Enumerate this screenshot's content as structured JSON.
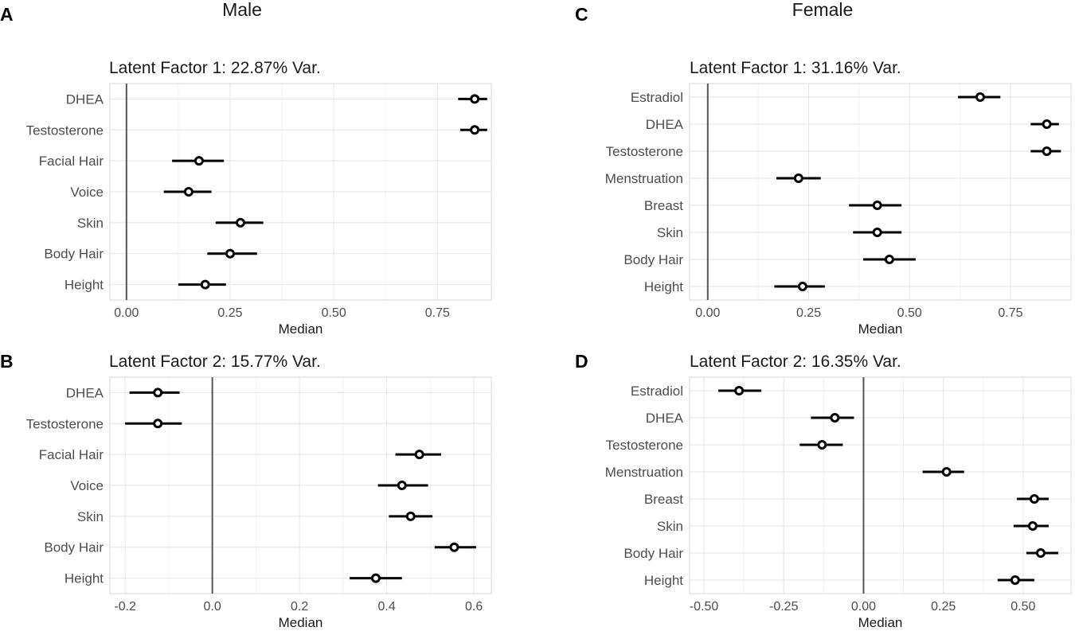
{
  "figure": {
    "columns": [
      {
        "title": "Male"
      },
      {
        "title": "Female"
      }
    ]
  },
  "chart_data": [
    {
      "panel": "A",
      "type": "scatter",
      "style": "forest-plot",
      "title": "Latent Factor 1: 22.87% Var.",
      "xlabel": "Median",
      "ylabel": "",
      "xlim": [
        -0.04,
        0.88
      ],
      "xticks": [
        0,
        0.25,
        0.5,
        0.75
      ],
      "xtick_labels": [
        "0.00",
        "0.25",
        "0.50",
        "0.75"
      ],
      "reference_line": 0,
      "grid": true,
      "categories": [
        "DHEA",
        "Testosterone",
        "Facial Hair",
        "Voice",
        "Skin",
        "Body Hair",
        "Height"
      ],
      "median": [
        0.84,
        0.84,
        0.175,
        0.15,
        0.275,
        0.25,
        0.19
      ],
      "lower": [
        0.8,
        0.805,
        0.11,
        0.09,
        0.215,
        0.195,
        0.125
      ],
      "upper": [
        0.87,
        0.87,
        0.235,
        0.205,
        0.33,
        0.315,
        0.24
      ]
    },
    {
      "panel": "B",
      "type": "scatter",
      "style": "forest-plot",
      "title": "Latent Factor 2: 15.77% Var.",
      "xlabel": "Median",
      "ylabel": "",
      "xlim": [
        -0.235,
        0.64
      ],
      "xticks": [
        -0.2,
        0,
        0.2,
        0.4,
        0.6
      ],
      "xtick_labels": [
        "-0.2",
        "0.0",
        "0.2",
        "0.4",
        "0.6"
      ],
      "reference_line": 0,
      "grid": true,
      "categories": [
        "DHEA",
        "Testosterone",
        "Facial Hair",
        "Voice",
        "Skin",
        "Body Hair",
        "Height"
      ],
      "median": [
        -0.125,
        -0.125,
        0.475,
        0.435,
        0.455,
        0.555,
        0.375
      ],
      "lower": [
        -0.19,
        -0.2,
        0.42,
        0.38,
        0.405,
        0.51,
        0.315
      ],
      "upper": [
        -0.075,
        -0.07,
        0.525,
        0.495,
        0.505,
        0.605,
        0.435
      ]
    },
    {
      "panel": "C",
      "type": "scatter",
      "style": "forest-plot",
      "title": "Latent Factor 1: 31.16% Var.",
      "xlabel": "Median",
      "ylabel": "",
      "xlim": [
        -0.045,
        0.9
      ],
      "xticks": [
        0,
        0.25,
        0.5,
        0.75
      ],
      "xtick_labels": [
        "0.00",
        "0.25",
        "0.50",
        "0.75"
      ],
      "reference_line": 0,
      "grid": true,
      "categories": [
        "Estradiol",
        "DHEA",
        "Testosterone",
        "Menstruation",
        "Breast",
        "Skin",
        "Body Hair",
        "Height"
      ],
      "median": [
        0.675,
        0.84,
        0.84,
        0.225,
        0.42,
        0.42,
        0.45,
        0.235
      ],
      "lower": [
        0.62,
        0.8,
        0.8,
        0.17,
        0.35,
        0.36,
        0.385,
        0.165
      ],
      "upper": [
        0.725,
        0.87,
        0.875,
        0.28,
        0.48,
        0.48,
        0.515,
        0.29
      ]
    },
    {
      "panel": "D",
      "type": "scatter",
      "style": "forest-plot",
      "title": "Latent Factor 2: 16.35% Var.",
      "xlabel": "Median",
      "ylabel": "",
      "xlim": [
        -0.545,
        0.65
      ],
      "xticks": [
        -0.5,
        -0.25,
        0,
        0.25,
        0.5
      ],
      "xtick_labels": [
        "-0.50",
        "-0.25",
        "0.00",
        "0.25",
        "0.50"
      ],
      "reference_line": 0,
      "grid": true,
      "categories": [
        "Estradiol",
        "DHEA",
        "Testosterone",
        "Menstruation",
        "Breast",
        "Skin",
        "Body Hair",
        "Height"
      ],
      "median": [
        -0.39,
        -0.09,
        -0.13,
        0.26,
        0.535,
        0.53,
        0.555,
        0.475
      ],
      "lower": [
        -0.455,
        -0.165,
        -0.2,
        0.185,
        0.48,
        0.47,
        0.51,
        0.42
      ],
      "upper": [
        -0.32,
        -0.03,
        -0.065,
        0.315,
        0.58,
        0.58,
        0.61,
        0.535
      ]
    }
  ]
}
